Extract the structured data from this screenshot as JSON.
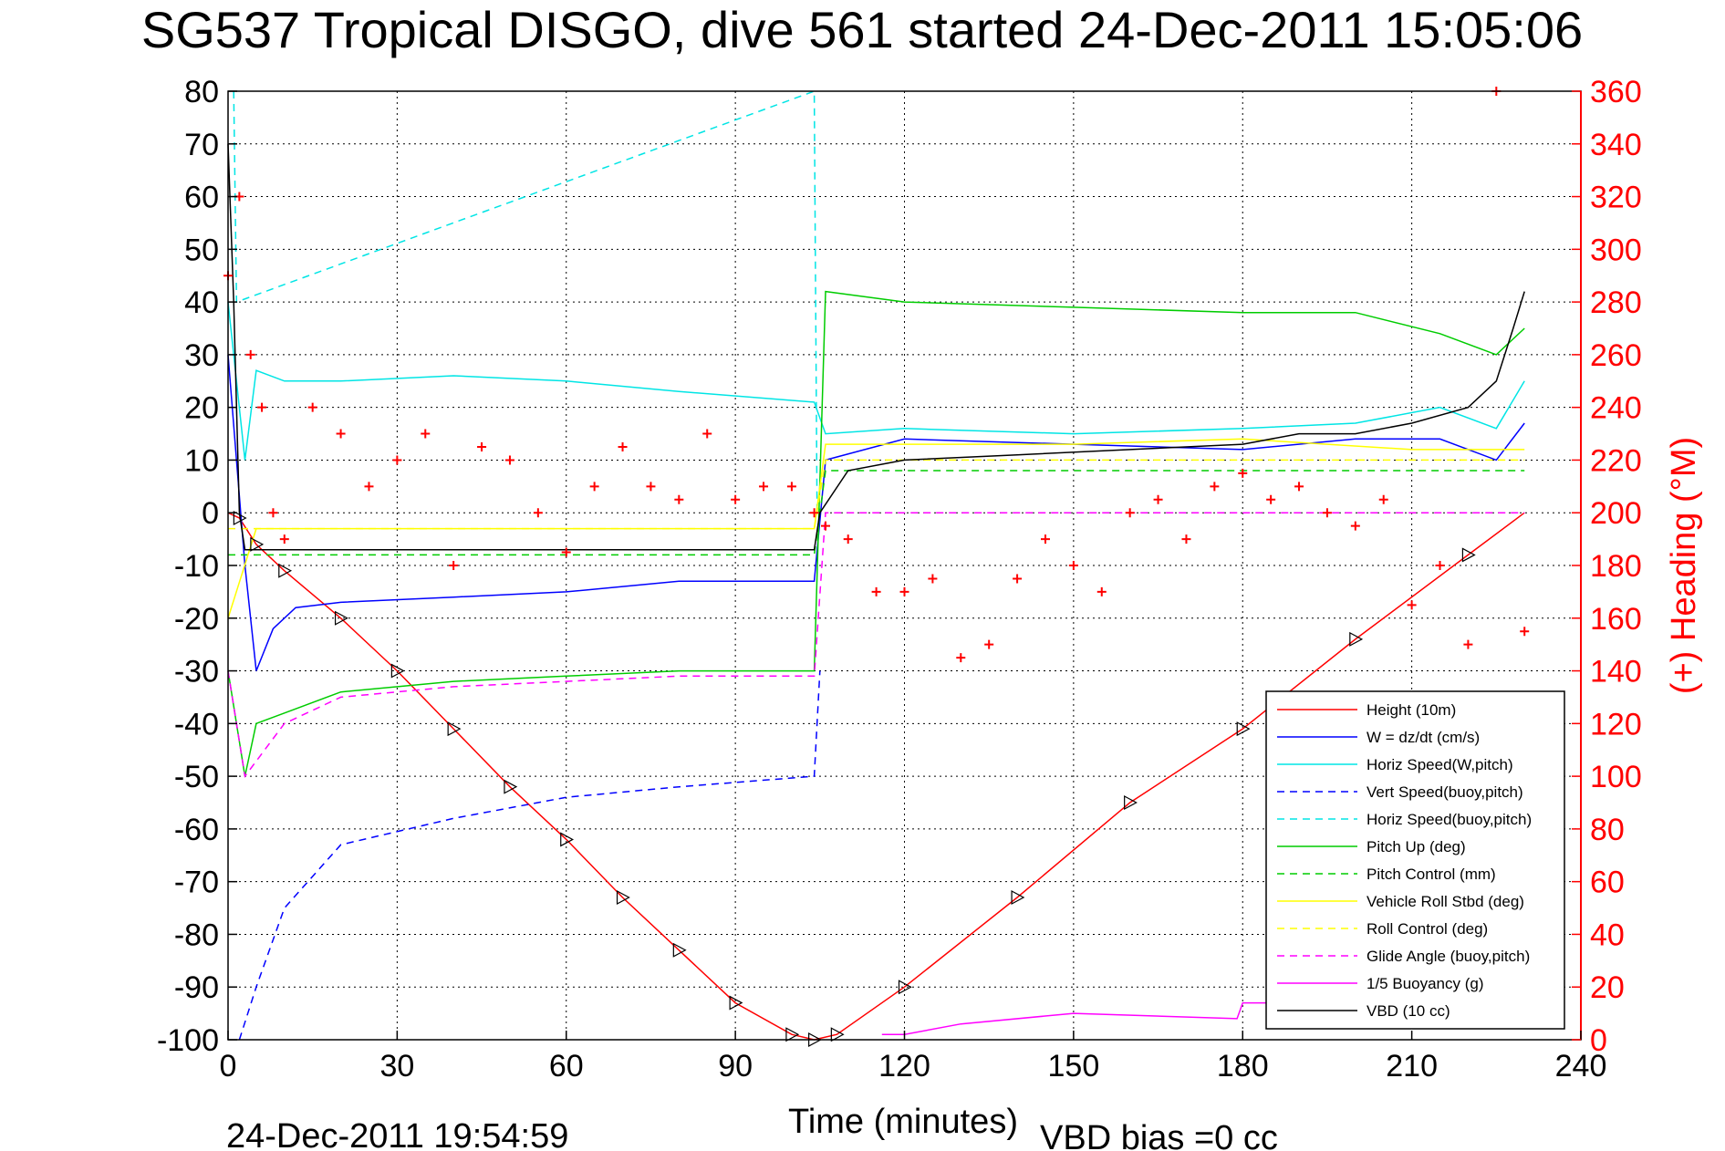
{
  "chart_data": {
    "type": "line",
    "title": "SG537 Tropical DISGO, dive 561 started 24-Dec-2011 15:05:06",
    "xlabel": "Time (minutes)",
    "ylabel_right": "(+) Heading (°M)",
    "xlim": [
      0,
      240
    ],
    "ylim": [
      -100,
      80
    ],
    "ylim_right": [
      0,
      360
    ],
    "xticks": [
      0,
      30,
      60,
      90,
      120,
      150,
      180,
      210,
      240
    ],
    "yticks": [
      80,
      70,
      60,
      50,
      40,
      30,
      20,
      10,
      0,
      -10,
      -20,
      -30,
      -40,
      -50,
      -60,
      -70,
      -80,
      -90,
      -100
    ],
    "yticks_right": [
      360,
      340,
      320,
      300,
      280,
      260,
      240,
      220,
      200,
      180,
      160,
      140,
      120,
      100,
      80,
      60,
      40,
      20,
      0
    ],
    "grid": true,
    "legend_position": "bottom-right",
    "series": [
      {
        "name": "Height (10m)",
        "color": "#ff0000",
        "style": "solid",
        "x": [
          0,
          2,
          5,
          10,
          20,
          30,
          40,
          50,
          60,
          70,
          80,
          90,
          100,
          104,
          108,
          120,
          140,
          160,
          180,
          200,
          220,
          230
        ],
        "y": [
          0,
          -1,
          -6,
          -11,
          -20,
          -30,
          -41,
          -52,
          -62,
          -73,
          -83,
          -93,
          -99,
          -100,
          -99,
          -90,
          -73,
          -55,
          -41,
          -24,
          -8,
          0
        ]
      },
      {
        "name": "W = dz/dt (cm/s)",
        "color": "#0000ff",
        "style": "solid",
        "x": [
          0,
          3,
          5,
          8,
          12,
          20,
          40,
          60,
          80,
          104,
          106,
          120,
          150,
          180,
          200,
          215,
          225,
          230
        ],
        "y": [
          30,
          -10,
          -30,
          -22,
          -18,
          -17,
          -16,
          -15,
          -13,
          -13,
          10,
          14,
          13,
          12,
          14,
          14,
          10,
          17
        ]
      },
      {
        "name": "Horiz Speed(W,pitch)",
        "color": "#00e5e5",
        "style": "solid",
        "x": [
          0,
          3,
          5,
          10,
          20,
          40,
          60,
          80,
          104,
          106,
          120,
          150,
          180,
          200,
          215,
          225,
          230
        ],
        "y": [
          40,
          10,
          27,
          25,
          25,
          26,
          25,
          23,
          21,
          15,
          16,
          15,
          16,
          17,
          20,
          16,
          25
        ]
      },
      {
        "name": "Vert Speed(buoy,pitch)",
        "color": "#0000ff",
        "style": "dashed",
        "x": [
          2,
          5,
          10,
          20,
          40,
          60,
          80,
          104,
          105
        ],
        "y": [
          -100,
          -90,
          -75,
          -63,
          -58,
          -54,
          -52,
          -50,
          -30
        ]
      },
      {
        "name": "Horiz Speed(buoy,pitch)",
        "color": "#00e5e5",
        "style": "dashed",
        "x": [
          1,
          1.5,
          104,
          104.5
        ],
        "y": [
          80,
          40,
          80,
          0
        ]
      },
      {
        "name": "Pitch Up (deg)",
        "color": "#00cc00",
        "style": "solid",
        "x": [
          0,
          3,
          5,
          10,
          20,
          40,
          60,
          80,
          104,
          106,
          120,
          150,
          180,
          200,
          215,
          225,
          230
        ],
        "y": [
          -30,
          -50,
          -40,
          -38,
          -34,
          -32,
          -31,
          -30,
          -30,
          42,
          40,
          39,
          38,
          38,
          34,
          30,
          35
        ]
      },
      {
        "name": "Pitch Control (mm)",
        "color": "#00cc00",
        "style": "dashed",
        "x": [
          0,
          5,
          104,
          106,
          230
        ],
        "y": [
          -8,
          -8,
          -8,
          8,
          8
        ]
      },
      {
        "name": "Vehicle Roll Stbd (deg)",
        "color": "#ffff00",
        "style": "solid",
        "x": [
          0,
          5,
          30,
          60,
          90,
          104,
          106,
          150,
          180,
          210,
          230
        ],
        "y": [
          -20,
          -3,
          -3,
          -3,
          -3,
          -3,
          13,
          13,
          14,
          12,
          12
        ]
      },
      {
        "name": "Roll Control (deg)",
        "color": "#ffff00",
        "style": "dashed",
        "x": [
          0,
          104,
          106,
          230
        ],
        "y": [
          -3,
          -3,
          10,
          10
        ]
      },
      {
        "name": "Glide Angle (buoy,pitch)",
        "color": "#ff00ff",
        "style": "dashed",
        "x": [
          0,
          3,
          10,
          20,
          40,
          60,
          80,
          104,
          106,
          230
        ],
        "y": [
          -30,
          -50,
          -40,
          -35,
          -33,
          -32,
          -31,
          -31,
          0,
          0
        ]
      },
      {
        "name": "1/5 Buoyancy (g)",
        "color": "#ff00ff",
        "style": "solid",
        "x": [
          116,
          120,
          130,
          150,
          179,
          180,
          200,
          230
        ],
        "y": [
          -99,
          -99,
          -97,
          -95,
          -96,
          -93,
          -93,
          -90
        ]
      },
      {
        "name": "VBD (10 cc)",
        "color": "#000000",
        "style": "solid",
        "x": [
          0,
          1,
          2,
          3,
          104,
          105,
          110,
          120,
          140,
          180,
          190,
          200,
          210,
          220,
          225,
          228,
          230
        ],
        "y": [
          70,
          40,
          0,
          -7,
          -7,
          0,
          8,
          10,
          11,
          13,
          15,
          15,
          17,
          20,
          25,
          35,
          42
        ]
      },
      {
        "name": "Heading",
        "color": "#ff0000",
        "style": "plus-markers",
        "axis": "right",
        "x": [
          0,
          2,
          4,
          6,
          8,
          10,
          15,
          20,
          25,
          30,
          35,
          40,
          45,
          50,
          55,
          60,
          65,
          70,
          75,
          80,
          85,
          90,
          95,
          100,
          104,
          106,
          110,
          115,
          120,
          125,
          130,
          135,
          140,
          145,
          150,
          155,
          160,
          165,
          170,
          175,
          180,
          185,
          190,
          195,
          200,
          205,
          210,
          215,
          220,
          225,
          230
        ],
        "y": [
          290,
          320,
          260,
          240,
          200,
          190,
          240,
          230,
          210,
          220,
          230,
          180,
          225,
          220,
          200,
          185,
          210,
          225,
          210,
          205,
          230,
          205,
          210,
          210,
          200,
          195,
          190,
          170,
          170,
          175,
          145,
          150,
          175,
          190,
          180,
          170,
          200,
          205,
          190,
          210,
          215,
          205,
          210,
          200,
          195,
          205,
          165,
          180,
          150,
          360,
          155
        ]
      }
    ]
  },
  "footer": {
    "timestamp": "24-Dec-2011 19:54:59",
    "vbd_bias": "VBD bias =0 cc"
  }
}
